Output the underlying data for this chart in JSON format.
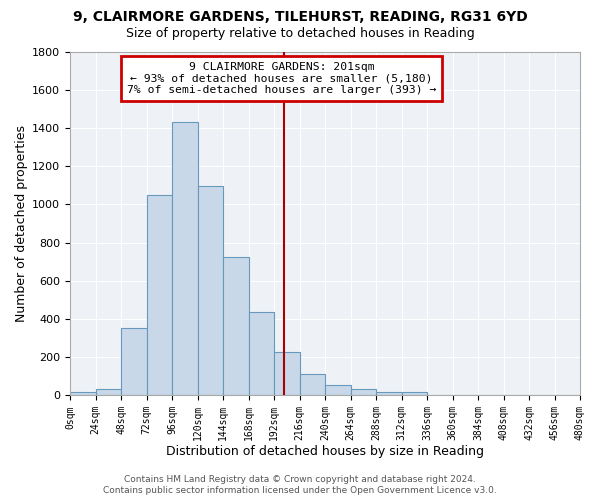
{
  "title": "9, CLAIRMORE GARDENS, TILEHURST, READING, RG31 6YD",
  "subtitle": "Size of property relative to detached houses in Reading",
  "xlabel": "Distribution of detached houses by size in Reading",
  "ylabel": "Number of detached properties",
  "bin_edges": [
    0,
    24,
    48,
    72,
    96,
    120,
    144,
    168,
    192,
    216,
    240,
    264,
    288,
    312,
    336,
    360,
    384,
    408,
    432,
    456,
    480
  ],
  "counts": [
    15,
    35,
    350,
    1050,
    1430,
    1095,
    725,
    435,
    225,
    110,
    55,
    35,
    20,
    15,
    0,
    0,
    0,
    0,
    0,
    0
  ],
  "bar_color": "#c8d8e8",
  "bar_edge_color": "#6699bb",
  "vline_x": 201,
  "vline_color": "#aa0000",
  "annotation_line1": "9 CLAIRMORE GARDENS: 201sqm",
  "annotation_line2": "← 93% of detached houses are smaller (5,180)",
  "annotation_line3": "7% of semi-detached houses are larger (393) →",
  "annotation_box_color": "#cc0000",
  "annotation_box_fill": "#ffffff",
  "ylim": [
    0,
    1800
  ],
  "yticks": [
    0,
    200,
    400,
    600,
    800,
    1000,
    1200,
    1400,
    1600,
    1800
  ],
  "footnote1": "Contains HM Land Registry data © Crown copyright and database right 2024.",
  "footnote2": "Contains public sector information licensed under the Open Government Licence v3.0.",
  "background_color": "#ffffff",
  "plot_bg_color": "#eef2f6",
  "grid_color": "#ffffff"
}
